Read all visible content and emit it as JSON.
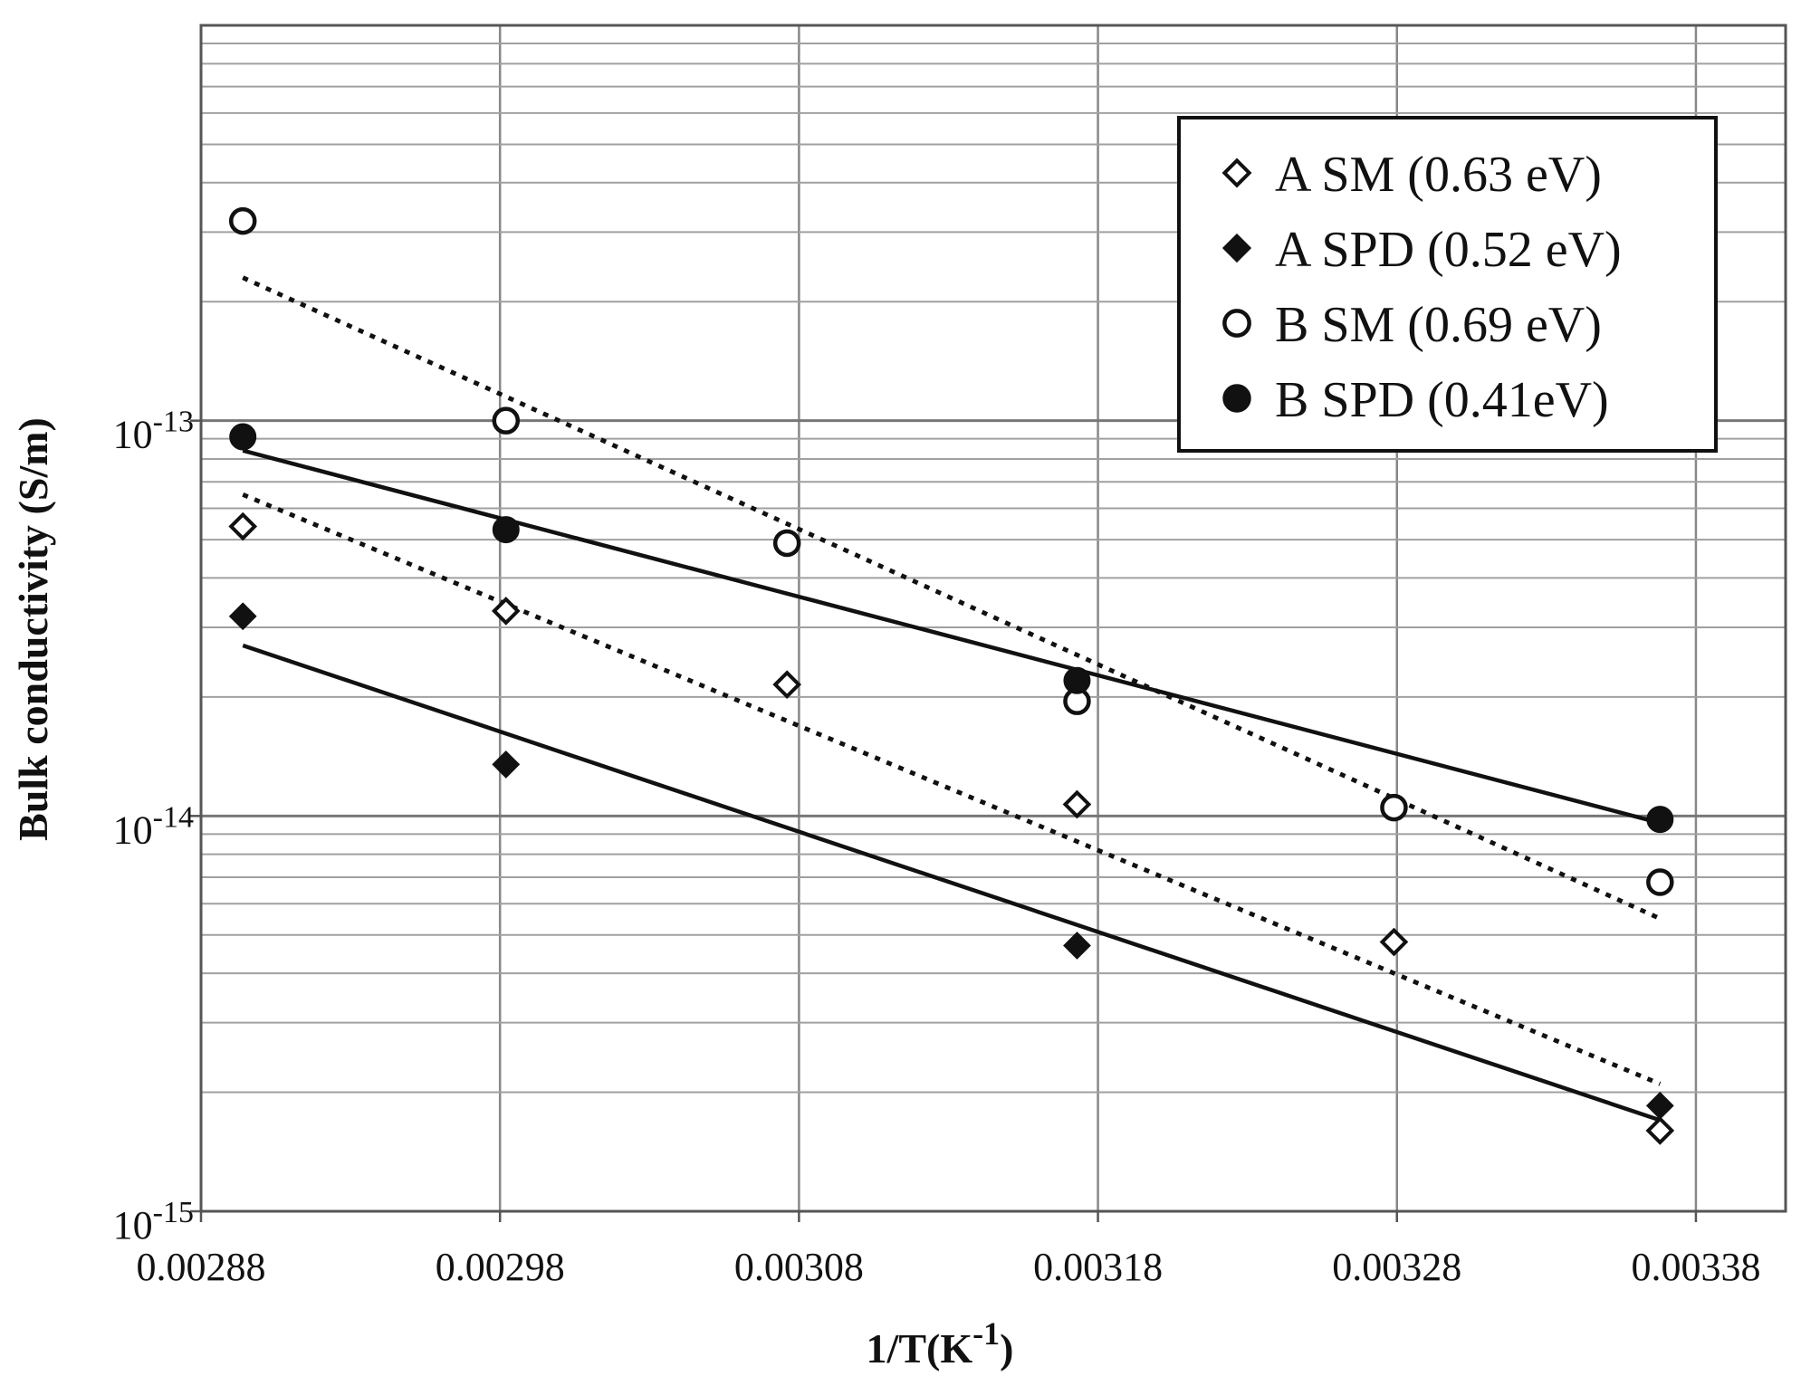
{
  "chart_data": {
    "type": "scatter",
    "title": "",
    "xlabel": "1/T(K",
    "xlabel_sup": "-1",
    "xlabel_suffix": ")",
    "ylabel": "Bulk conductivity (S/m)",
    "xlim": [
      0.00288,
      0.00341
    ],
    "ylim": [
      1e-15,
      1e-12
    ],
    "yscale": "log",
    "grid": true,
    "legend_position": "top-right",
    "x_ticks": [
      "0.00288",
      "0.00298",
      "0.00308",
      "0.00318",
      "0.00328",
      "0.00338"
    ],
    "x_tick_values": [
      0.00288,
      0.00298,
      0.00308,
      0.00318,
      0.00328,
      0.00338
    ],
    "y_ticks": [
      {
        "value": 1e-13,
        "base": "10",
        "exp": "-13"
      },
      {
        "value": 1e-14,
        "base": "10",
        "exp": "-14"
      },
      {
        "value": 1e-15,
        "base": "10",
        "exp": "-15"
      }
    ],
    "series": [
      {
        "name": "A SM (0.63 eV)",
        "marker": "diamond-open",
        "fit": "dotted",
        "x": [
          0.002894,
          0.002982,
          0.003076,
          0.003173,
          0.003279,
          0.003368
        ],
        "y": [
          5.4e-14,
          3.3e-14,
          2.15e-14,
          1.07e-14,
          4.8e-15,
          1.6e-15
        ],
        "fit_line": {
          "x": [
            0.002894,
            0.003368
          ],
          "y": [
            6.5e-14,
            2.1e-15
          ]
        }
      },
      {
        "name": "A SPD (0.52 eV)",
        "marker": "diamond-filled",
        "fit": "solid",
        "x": [
          0.002894,
          0.002982,
          0.003173,
          0.003368
        ],
        "y": [
          3.2e-14,
          1.35e-14,
          4.7e-15,
          1.85e-15
        ],
        "fit_line": {
          "x": [
            0.002894,
            0.003368
          ],
          "y": [
            2.7e-14,
            1.7e-15
          ]
        }
      },
      {
        "name": "B SM (0.69 eV)",
        "marker": "circle-open",
        "fit": "dotted",
        "x": [
          0.002894,
          0.002982,
          0.003076,
          0.003173,
          0.003279,
          0.003368
        ],
        "y": [
          3.2e-13,
          1e-13,
          4.9e-14,
          1.95e-14,
          1.05e-14,
          6.8e-15
        ],
        "fit_line": {
          "x": [
            0.002894,
            0.003368
          ],
          "y": [
            2.3e-13,
            5.5e-15
          ]
        }
      },
      {
        "name": "B SPD (0.41eV)",
        "marker": "circle-filled",
        "fit": "solid",
        "x": [
          0.002894,
          0.002982,
          0.003173,
          0.003368
        ],
        "y": [
          9.1e-14,
          5.3e-14,
          2.2e-14,
          9.8e-15
        ],
        "fit_line": {
          "x": [
            0.002894,
            0.003368
          ],
          "y": [
            8.4e-14,
            9.6e-15
          ]
        }
      }
    ]
  }
}
